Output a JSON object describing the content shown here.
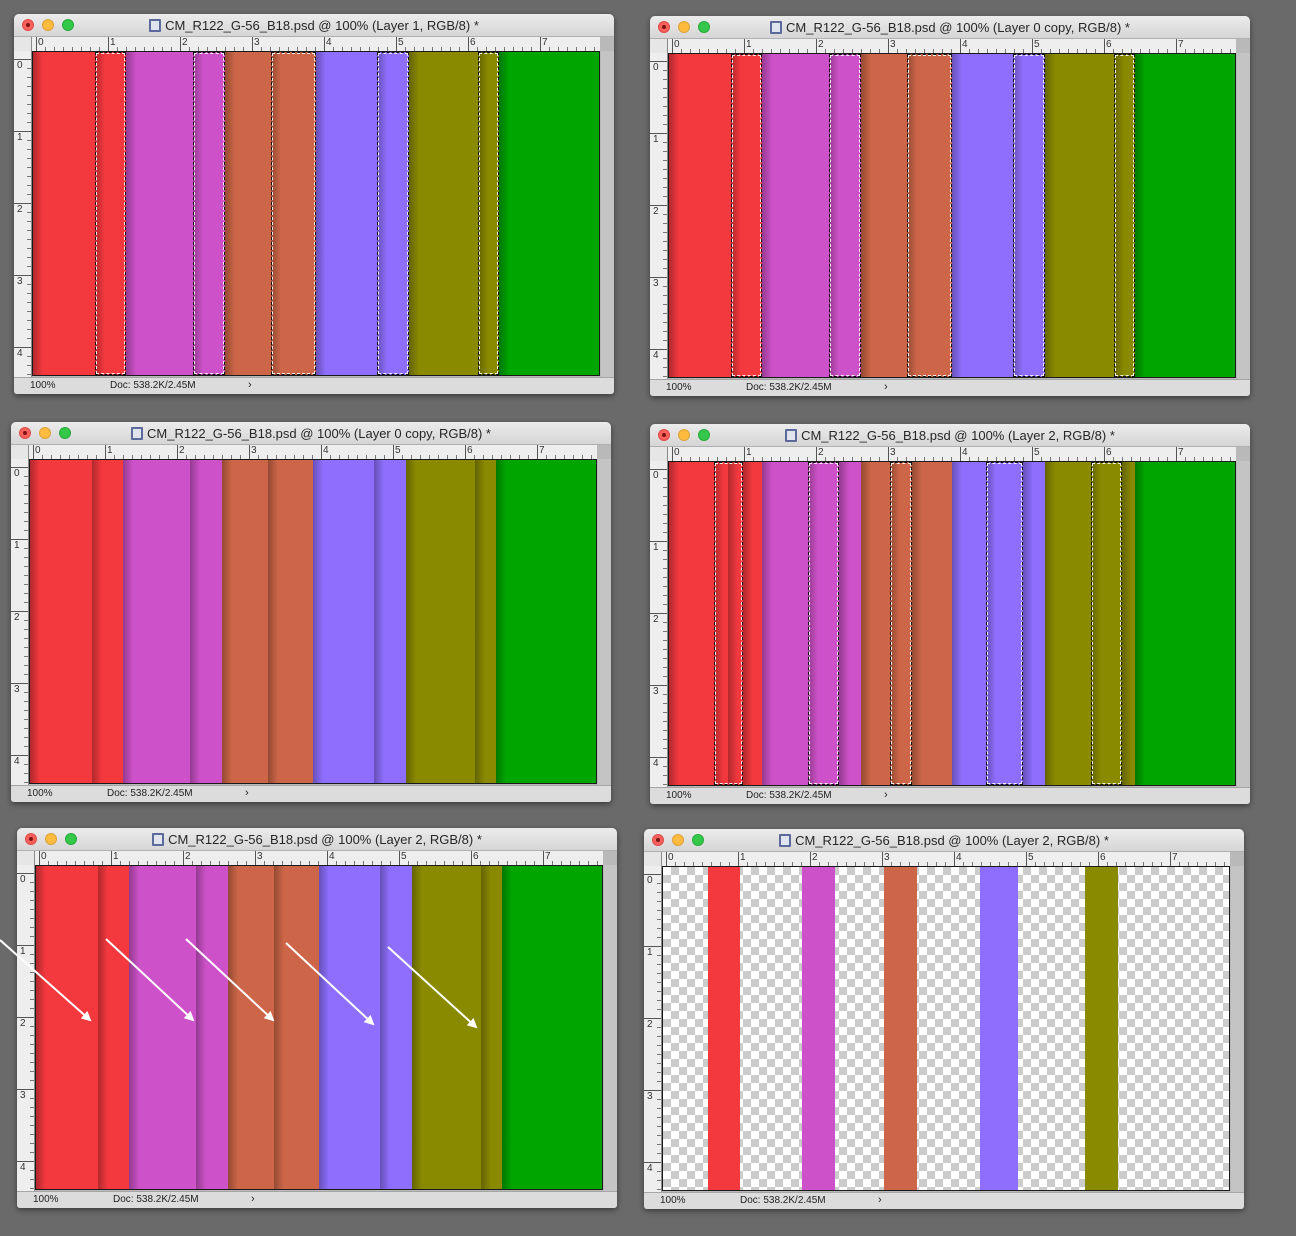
{
  "colors": {
    "red": "#f4393e",
    "magenta": "#cd51c8",
    "rust": "#cd6648",
    "violet": "#8e6ffd",
    "olive": "#8a8a00",
    "green": "#00a500",
    "arrow": "#ffffff"
  },
  "ruler": {
    "h_labels": [
      "0",
      "1",
      "2",
      "3",
      "4",
      "5",
      "6",
      "7"
    ],
    "v_labels": [
      "0",
      "1",
      "2",
      "3",
      "4"
    ]
  },
  "windows": [
    {
      "title": "CM_R122_G-56_B18.psd @ 100% (Layer 1, RGB/8) *",
      "zoom": "100%",
      "doc": "Doc: 538.2K/2.45M",
      "bands": [
        {
          "color": "red",
          "from": 0,
          "to": 0.11
        },
        {
          "color": "red",
          "from": 0.11,
          "to": 0.165
        },
        {
          "color": "magenta",
          "from": 0.165,
          "to": 0.282
        },
        {
          "color": "magenta",
          "from": 0.282,
          "to": 0.34
        },
        {
          "color": "rust",
          "from": 0.34,
          "to": 0.42
        },
        {
          "color": "rust",
          "from": 0.42,
          "to": 0.5
        },
        {
          "color": "violet",
          "from": 0.5,
          "to": 0.607
        },
        {
          "color": "violet",
          "from": 0.607,
          "to": 0.664
        },
        {
          "color": "olive",
          "from": 0.664,
          "to": 0.786
        },
        {
          "color": "olive",
          "from": 0.786,
          "to": 0.823
        },
        {
          "color": "green",
          "from": 0.823,
          "to": 1
        }
      ],
      "selections": [
        [
          0.11,
          0.165
        ],
        [
          0.282,
          0.34
        ],
        [
          0.42,
          0.5
        ],
        [
          0.607,
          0.664
        ],
        [
          0.786,
          0.823
        ]
      ]
    },
    {
      "title": "CM_R122_G-56_B18.psd @ 100% (Layer 0 copy, RGB/8) *",
      "zoom": "100%",
      "doc": "Doc: 538.2K/2.45M",
      "bands": [
        {
          "color": "red",
          "from": 0,
          "to": 0.11
        },
        {
          "color": "red",
          "from": 0.11,
          "to": 0.165
        },
        {
          "color": "magenta",
          "from": 0.165,
          "to": 0.282
        },
        {
          "color": "magenta",
          "from": 0.282,
          "to": 0.34
        },
        {
          "color": "rust",
          "from": 0.34,
          "to": 0.42
        },
        {
          "color": "rust",
          "from": 0.42,
          "to": 0.5
        },
        {
          "color": "violet",
          "from": 0.5,
          "to": 0.607
        },
        {
          "color": "violet",
          "from": 0.607,
          "to": 0.664
        },
        {
          "color": "olive",
          "from": 0.664,
          "to": 0.786
        },
        {
          "color": "olive",
          "from": 0.786,
          "to": 0.823
        },
        {
          "color": "green",
          "from": 0.823,
          "to": 1
        }
      ],
      "selections": [
        [
          0.11,
          0.165
        ],
        [
          0.282,
          0.34
        ],
        [
          0.42,
          0.5
        ],
        [
          0.607,
          0.664
        ],
        [
          0.786,
          0.823
        ]
      ]
    },
    {
      "title": "CM_R122_G-56_B18.psd @ 100% (Layer 0 copy, RGB/8) *",
      "zoom": "100%",
      "doc": "Doc: 538.2K/2.45M",
      "bands": [
        {
          "color": "red",
          "from": 0,
          "to": 0.11
        },
        {
          "color": "red",
          "from": 0.11,
          "to": 0.165
        },
        {
          "color": "magenta",
          "from": 0.165,
          "to": 0.282
        },
        {
          "color": "magenta",
          "from": 0.282,
          "to": 0.34
        },
        {
          "color": "rust",
          "from": 0.34,
          "to": 0.42
        },
        {
          "color": "rust",
          "from": 0.42,
          "to": 0.5
        },
        {
          "color": "violet",
          "from": 0.5,
          "to": 0.607
        },
        {
          "color": "violet",
          "from": 0.607,
          "to": 0.664
        },
        {
          "color": "olive",
          "from": 0.664,
          "to": 0.786
        },
        {
          "color": "olive",
          "from": 0.786,
          "to": 0.823
        },
        {
          "color": "green",
          "from": 0.823,
          "to": 1
        }
      ],
      "selections": []
    },
    {
      "title": "CM_R122_G-56_B18.psd @ 100% (Layer 2, RGB/8) *",
      "zoom": "100%",
      "doc": "Doc: 538.2K/2.45M",
      "bands": [
        {
          "color": "red",
          "from": 0,
          "to": 0.08
        },
        {
          "color": "red",
          "from": 0.08,
          "to": 0.105
        },
        {
          "color": "red",
          "from": 0.105,
          "to": 0.13
        },
        {
          "color": "red",
          "from": 0.13,
          "to": 0.165
        },
        {
          "color": "magenta",
          "from": 0.165,
          "to": 0.245
        },
        {
          "color": "magenta",
          "from": 0.245,
          "to": 0.3
        },
        {
          "color": "magenta",
          "from": 0.3,
          "to": 0.34
        },
        {
          "color": "rust",
          "from": 0.34,
          "to": 0.39
        },
        {
          "color": "rust",
          "from": 0.39,
          "to": 0.43
        },
        {
          "color": "rust",
          "from": 0.43,
          "to": 0.5
        },
        {
          "color": "violet",
          "from": 0.5,
          "to": 0.56
        },
        {
          "color": "violet",
          "from": 0.56,
          "to": 0.625
        },
        {
          "color": "violet",
          "from": 0.625,
          "to": 0.664
        },
        {
          "color": "olive",
          "from": 0.664,
          "to": 0.745
        },
        {
          "color": "olive",
          "from": 0.745,
          "to": 0.8
        },
        {
          "color": "olive",
          "from": 0.8,
          "to": 0.823
        },
        {
          "color": "green",
          "from": 0.823,
          "to": 1
        }
      ],
      "selections": [
        [
          0.08,
          0.13
        ],
        [
          0.245,
          0.3
        ],
        [
          0.39,
          0.43
        ],
        [
          0.56,
          0.625
        ],
        [
          0.745,
          0.8
        ]
      ]
    },
    {
      "title": "CM_R122_G-56_B18.psd @ 100% (Layer 2, RGB/8) *",
      "zoom": "100%",
      "doc": "Doc: 538.2K/2.45M",
      "bands": [
        {
          "color": "red",
          "from": 0,
          "to": 0.11
        },
        {
          "color": "red",
          "from": 0.11,
          "to": 0.165
        },
        {
          "color": "magenta",
          "from": 0.165,
          "to": 0.282
        },
        {
          "color": "magenta",
          "from": 0.282,
          "to": 0.34
        },
        {
          "color": "rust",
          "from": 0.34,
          "to": 0.42
        },
        {
          "color": "rust",
          "from": 0.42,
          "to": 0.5
        },
        {
          "color": "violet",
          "from": 0.5,
          "to": 0.607
        },
        {
          "color": "violet",
          "from": 0.607,
          "to": 0.664
        },
        {
          "color": "olive",
          "from": 0.664,
          "to": 0.786
        },
        {
          "color": "olive",
          "from": 0.786,
          "to": 0.823
        },
        {
          "color": "green",
          "from": 0.823,
          "to": 1
        }
      ],
      "selections": []
    },
    {
      "title": "CM_R122_G-56_B18.psd @ 100% (Layer 2, RGB/8) *",
      "zoom": "100%",
      "doc": "Doc: 538.2K/2.45M",
      "transparent": true,
      "bands": [
        {
          "color": "red",
          "from": 0.08,
          "to": 0.135
        },
        {
          "color": "magenta",
          "from": 0.245,
          "to": 0.302
        },
        {
          "color": "rust",
          "from": 0.39,
          "to": 0.447
        },
        {
          "color": "violet",
          "from": 0.56,
          "to": 0.627
        },
        {
          "color": "olive",
          "from": 0.745,
          "to": 0.803
        }
      ],
      "selections": []
    }
  ]
}
